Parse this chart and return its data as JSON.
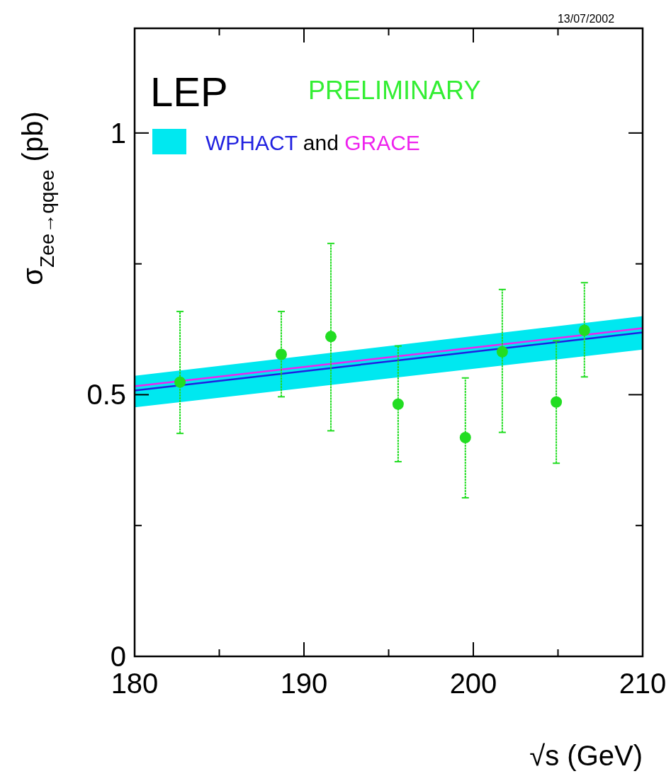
{
  "chart_data": {
    "type": "scatter",
    "xlabel": "√s (GeV)",
    "ylabel": "σ$_{Zee→qqee}$ (pb)",
    "annotations": [
      "13/07/2002",
      "LEP",
      "PRELIMINARY",
      "and"
    ],
    "xlim": [
      180,
      210
    ],
    "xticks": [
      180,
      {
        "value": 185,
        "label": null
      },
      190,
      {
        "value": 195,
        "label": null
      },
      200,
      {
        "value": 205,
        "label": null
      },
      210
    ],
    "ylim": [
      0,
      1.2
    ],
    "yticks": [
      0,
      {
        "value": 0.25,
        "label": null
      },
      0.5,
      {
        "value": 0.75,
        "label": null
      },
      1
    ],
    "grid": false,
    "legend": "top left",
    "marker": "circle",
    "series": [
      {
        "type": "line",
        "name": "WPHACT",
        "color": "#2020e0",
        "marker": "none",
        "x": [
          180,
          210
        ],
        "values": [
          0.508,
          0.619
        ],
        "lower": [
          0.476,
          0.586
        ],
        "upper": [
          0.536,
          0.65
        ]
      },
      {
        "type": "line",
        "name": "GRACE",
        "color": "#ee22ee",
        "marker": "none",
        "x": [
          180,
          210
        ],
        "values": [
          0.516,
          0.627
        ]
      },
      {
        "color": "#22dd22",
        "x": [
          182.68,
          188.66,
          191.59,
          195.56,
          199.53,
          201.71,
          204.9,
          206.56
        ],
        "values": [
          0.524,
          0.577,
          0.611,
          0.482,
          0.418,
          0.582,
          0.486,
          0.623
        ],
        "errors": [
          [
            0.426,
            0.659
          ],
          [
            0.496,
            0.659
          ],
          [
            0.431,
            0.789
          ],
          [
            0.372,
            0.593
          ],
          [
            0.303,
            0.532
          ],
          [
            0.428,
            0.701
          ],
          [
            0.369,
            0.603
          ],
          [
            0.534,
            0.714
          ]
        ]
      }
    ]
  }
}
